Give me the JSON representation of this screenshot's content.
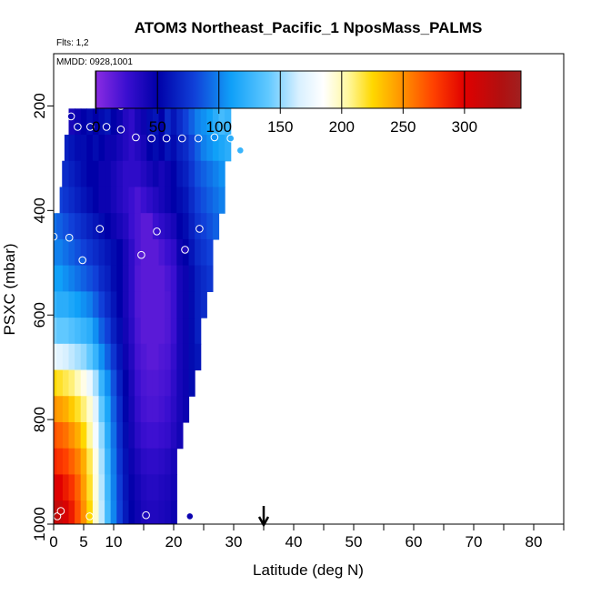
{
  "chart_data": {
    "type": "heatmap",
    "title": "ATOM3 Northeast_Pacific_1 NposMass_PALMS",
    "flights_label": "Flts: 1,2",
    "dates_label": "MMDD: 0928,1001",
    "xlabel": "Latitude (deg N)",
    "ylabel": "PSXC (mbar)",
    "xlim": [
      0,
      85
    ],
    "ylim": [
      1000,
      100
    ],
    "x_ticks": [
      0,
      5,
      10,
      20,
      30,
      40,
      50,
      60,
      70,
      80
    ],
    "x_minor_ticks": [
      0,
      5,
      10,
      15,
      20,
      25,
      30,
      35,
      40,
      45,
      50,
      55,
      60,
      65,
      70,
      75,
      80,
      85
    ],
    "y_ticks": [
      200,
      400,
      600,
      800,
      1000
    ],
    "grid": false,
    "colorbar": {
      "range": [
        -0.5,
        346
      ],
      "ticks": [
        0,
        50,
        100,
        150,
        200,
        250,
        300
      ],
      "placement": "top-inside",
      "stops": [
        {
          "v": 0,
          "c": "#8a2be2"
        },
        {
          "v": 25,
          "c": "#3a0fd0"
        },
        {
          "v": 50,
          "c": "#0000a8"
        },
        {
          "v": 80,
          "c": "#1040d8"
        },
        {
          "v": 110,
          "c": "#10a0f8"
        },
        {
          "v": 140,
          "c": "#60c8ff"
        },
        {
          "v": 165,
          "c": "#d8f0ff"
        },
        {
          "v": 185,
          "c": "#ffffff"
        },
        {
          "v": 205,
          "c": "#fff8a0"
        },
        {
          "v": 225,
          "c": "#ffd800"
        },
        {
          "v": 250,
          "c": "#ff9000"
        },
        {
          "v": 275,
          "c": "#ff4000"
        },
        {
          "v": 300,
          "c": "#e00000"
        },
        {
          "v": 330,
          "c": "#b01010"
        },
        {
          "v": 346,
          "c": "#a02020"
        }
      ]
    },
    "curtain_x": [
      0,
      1,
      2,
      3,
      4,
      5,
      6,
      7,
      8,
      9,
      10,
      11,
      12,
      13,
      14,
      15,
      16,
      17,
      18,
      19,
      20,
      21,
      22,
      23,
      24,
      25,
      26,
      27,
      28,
      29,
      30,
      31
    ],
    "curtain_rows": [
      {
        "p": 180,
        "x0": 10.8,
        "x1": 29.6,
        "v": [
          null,
          null,
          null,
          null,
          null,
          null,
          null,
          null,
          null,
          null,
          null,
          30,
          20,
          25,
          30,
          35,
          40,
          50,
          60,
          50,
          70,
          60,
          80,
          90,
          100,
          110,
          120,
          130,
          140,
          null,
          null,
          null
        ]
      },
      {
        "p": 230,
        "x0": 2.5,
        "x1": 30.3,
        "v": [
          null,
          null,
          null,
          40,
          45,
          50,
          55,
          50,
          55,
          60,
          50,
          45,
          35,
          30,
          40,
          45,
          55,
          60,
          50,
          70,
          60,
          70,
          80,
          90,
          100,
          105,
          110,
          120,
          130,
          125,
          null,
          null
        ]
      },
      {
        "p": 280,
        "x0": 1.8,
        "x1": 31.0,
        "v": [
          null,
          null,
          65,
          60,
          55,
          55,
          50,
          55,
          50,
          45,
          45,
          40,
          35,
          30,
          35,
          40,
          50,
          55,
          50,
          60,
          55,
          65,
          70,
          80,
          90,
          100,
          105,
          110,
          115,
          120,
          null,
          null
        ]
      },
      {
        "p": 330,
        "x0": 1.4,
        "x1": 30.7,
        "v": [
          null,
          70,
          70,
          65,
          60,
          55,
          50,
          50,
          45,
          45,
          40,
          35,
          30,
          30,
          30,
          35,
          40,
          45,
          40,
          45,
          50,
          60,
          65,
          75,
          85,
          90,
          95,
          100,
          105,
          null,
          null,
          null
        ]
      },
      {
        "p": 380,
        "x0": 1.0,
        "x1": 30.3,
        "v": [
          null,
          80,
          75,
          70,
          65,
          60,
          55,
          50,
          45,
          45,
          40,
          35,
          30,
          25,
          20,
          25,
          30,
          35,
          40,
          45,
          50,
          55,
          60,
          70,
          80,
          85,
          90,
          95,
          100,
          null,
          null,
          null
        ]
      },
      {
        "p": 430,
        "x0": 0.0,
        "x1": 29.6,
        "v": [
          95,
          90,
          85,
          80,
          75,
          70,
          65,
          60,
          55,
          50,
          45,
          40,
          35,
          25,
          20,
          15,
          15,
          25,
          30,
          35,
          40,
          50,
          55,
          65,
          75,
          80,
          85,
          90,
          null,
          null,
          null,
          null
        ]
      },
      {
        "p": 480,
        "x0": 0.0,
        "x1": 28.9,
        "v": [
          100,
          100,
          95,
          90,
          85,
          80,
          75,
          70,
          65,
          60,
          55,
          50,
          40,
          30,
          20,
          15,
          15,
          15,
          20,
          25,
          30,
          45,
          50,
          60,
          70,
          75,
          80,
          null,
          null,
          null,
          null,
          null
        ]
      },
      {
        "p": 530,
        "x0": 0.0,
        "x1": 27.9,
        "v": [
          110,
          110,
          105,
          100,
          95,
          90,
          85,
          80,
          70,
          65,
          55,
          50,
          40,
          30,
          18,
          15,
          15,
          15,
          15,
          20,
          25,
          40,
          45,
          55,
          65,
          70,
          75,
          null,
          null,
          null,
          null,
          null
        ]
      },
      {
        "p": 580,
        "x0": 0.0,
        "x1": 27.2,
        "v": [
          125,
          120,
          120,
          115,
          110,
          105,
          100,
          90,
          80,
          70,
          60,
          50,
          40,
          30,
          18,
          15,
          15,
          15,
          15,
          18,
          25,
          40,
          45,
          55,
          65,
          70,
          null,
          null,
          null,
          null,
          null,
          null
        ]
      },
      {
        "p": 630,
        "x0": 0.0,
        "x1": 26.6,
        "v": [
          145,
          140,
          140,
          135,
          130,
          125,
          120,
          105,
          90,
          80,
          65,
          55,
          42,
          32,
          20,
          15,
          15,
          15,
          15,
          18,
          25,
          40,
          45,
          55,
          65,
          null,
          null,
          null,
          null,
          null,
          null,
          null
        ]
      },
      {
        "p": 680,
        "x0": 0.0,
        "x1": 26.2,
        "v": [
          175,
          170,
          165,
          160,
          155,
          150,
          140,
          125,
          105,
          90,
          75,
          60,
          45,
          35,
          22,
          18,
          15,
          15,
          18,
          20,
          28,
          40,
          45,
          55,
          60,
          null,
          null,
          null,
          null,
          null,
          null,
          null
        ]
      },
      {
        "p": 730,
        "x0": 0.0,
        "x1": 25.6,
        "v": [
          225,
          220,
          215,
          210,
          200,
          190,
          175,
          155,
          125,
          105,
          85,
          65,
          50,
          38,
          25,
          20,
          18,
          18,
          20,
          22,
          30,
          40,
          45,
          55,
          null,
          null,
          null,
          null,
          null,
          null,
          null,
          null
        ]
      },
      {
        "p": 780,
        "x0": 0.0,
        "x1": 24.9,
        "v": [
          250,
          245,
          240,
          230,
          220,
          210,
          195,
          170,
          140,
          115,
          90,
          70,
          52,
          40,
          28,
          22,
          20,
          20,
          22,
          25,
          32,
          40,
          45,
          null,
          null,
          null,
          null,
          null,
          null,
          null,
          null,
          null
        ]
      },
      {
        "p": 830,
        "x0": 0.0,
        "x1": 24.2,
        "v": [
          270,
          265,
          260,
          250,
          240,
          225,
          205,
          180,
          150,
          120,
          95,
          72,
          55,
          42,
          32,
          26,
          24,
          24,
          26,
          28,
          35,
          42,
          null,
          null,
          null,
          null,
          null,
          null,
          null,
          null,
          null,
          null
        ]
      },
      {
        "p": 880,
        "x0": 0.0,
        "x1": 23.5,
        "v": [
          285,
          280,
          275,
          265,
          255,
          240,
          215,
          190,
          155,
          125,
          98,
          75,
          58,
          45,
          38,
          32,
          30,
          30,
          32,
          35,
          40,
          null,
          null,
          null,
          null,
          null,
          null,
          null,
          null,
          null,
          null,
          null
        ]
      },
      {
        "p": 930,
        "x0": 0.0,
        "x1": 22.9,
        "v": [
          305,
          300,
          290,
          280,
          265,
          245,
          220,
          192,
          158,
          128,
          100,
          78,
          60,
          48,
          42,
          36,
          34,
          34,
          36,
          38,
          42,
          null,
          null,
          null,
          null,
          null,
          null,
          null,
          null,
          null,
          null,
          null
        ]
      },
      {
        "p": 980,
        "x0": 0.0,
        "x1": 22.9,
        "v": [
          320,
          315,
          305,
          290,
          270,
          250,
          225,
          195,
          160,
          130,
          102,
          80,
          62,
          50,
          44,
          38,
          36,
          36,
          38,
          40,
          45,
          null,
          null,
          null,
          null,
          null,
          null,
          null,
          null,
          null,
          null,
          null
        ]
      }
    ],
    "samples": [
      {
        "lat": 11.2,
        "p": 200,
        "v": 30
      },
      {
        "lat": 19.4,
        "p": 195,
        "v": 60
      },
      {
        "lat": 26.6,
        "p": 185,
        "v": 120
      },
      {
        "lat": 29.2,
        "p": 190,
        "v": 140
      },
      {
        "lat": 2.9,
        "p": 220,
        "v": 45
      },
      {
        "lat": 4.0,
        "p": 240,
        "v": 55
      },
      {
        "lat": 6.1,
        "p": 240,
        "v": 55
      },
      {
        "lat": 8.8,
        "p": 240,
        "v": 55
      },
      {
        "lat": 11.2,
        "p": 245,
        "v": 45
      },
      {
        "lat": 13.7,
        "p": 260,
        "v": 35
      },
      {
        "lat": 16.3,
        "p": 262,
        "v": 45
      },
      {
        "lat": 18.8,
        "p": 262,
        "v": 55
      },
      {
        "lat": 21.4,
        "p": 262,
        "v": 65
      },
      {
        "lat": 24.1,
        "p": 262,
        "v": 90
      },
      {
        "lat": 26.8,
        "p": 260,
        "v": 105
      },
      {
        "lat": 29.5,
        "p": 262,
        "v": 120
      },
      {
        "lat": 31.1,
        "p": 285,
        "v": 125
      },
      {
        "lat": 0.0,
        "p": 450,
        "v": 95
      },
      {
        "lat": 2.6,
        "p": 452,
        "v": 90
      },
      {
        "lat": 7.7,
        "p": 435,
        "v": 60
      },
      {
        "lat": 4.8,
        "p": 495,
        "v": 90
      },
      {
        "lat": 14.6,
        "p": 485,
        "v": 15
      },
      {
        "lat": 17.2,
        "p": 440,
        "v": 25
      },
      {
        "lat": 21.9,
        "p": 475,
        "v": 35
      },
      {
        "lat": 24.3,
        "p": 435,
        "v": 65
      },
      {
        "lat": 0.6,
        "p": 985,
        "v": 320
      },
      {
        "lat": 1.2,
        "p": 975,
        "v": 315
      },
      {
        "lat": 6.0,
        "p": 985,
        "v": 225
      },
      {
        "lat": 15.4,
        "p": 983,
        "v": 38
      },
      {
        "lat": 22.7,
        "p": 985,
        "v": 45
      }
    ],
    "arrow_lat": 35
  }
}
